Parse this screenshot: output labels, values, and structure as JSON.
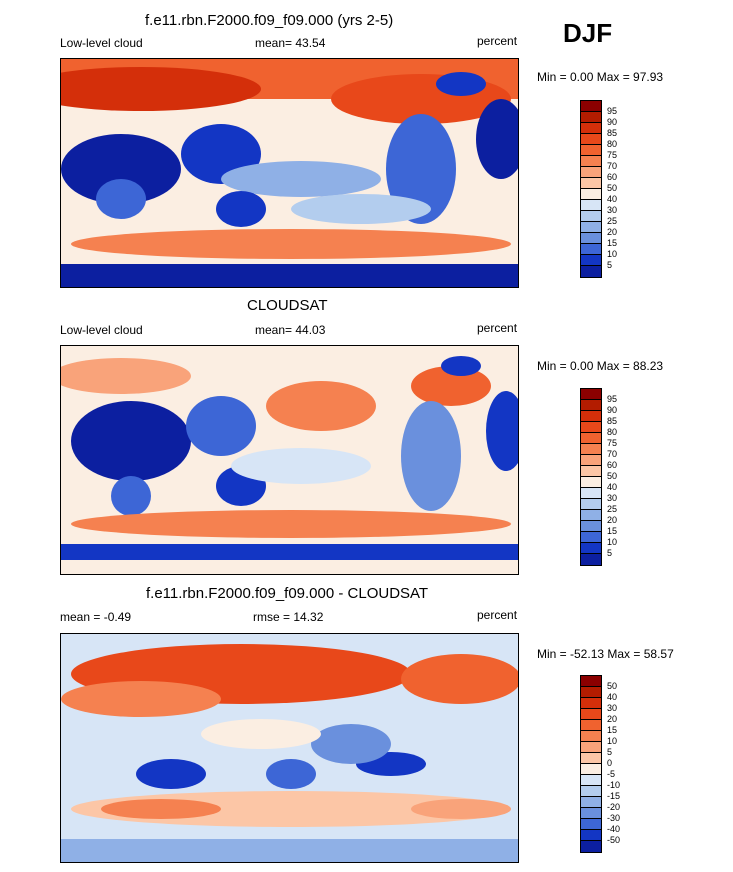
{
  "season": "DJF",
  "panels": [
    {
      "title": "f.e11.rbn.F2000.f09_f09.000 (yrs 2-5)",
      "left_label": "Low-level cloud",
      "center_label": "mean=  43.54",
      "right_label": "percent",
      "minmax": "Min =   0.00 Max =   97.93",
      "colorbar": {
        "labels": [
          "95",
          "90",
          "85",
          "80",
          "75",
          "70",
          "60",
          "50",
          "40",
          "30",
          "25",
          "20",
          "15",
          "10",
          "5"
        ],
        "colors": [
          "#8b0000",
          "#b31c00",
          "#d42f0a",
          "#e8481a",
          "#f0622f",
          "#f58150",
          "#f9a37a",
          "#fcc6a6",
          "#fbeee2",
          "#d7e5f6",
          "#b3cdee",
          "#8fb0e6",
          "#6a90dd",
          "#3d66d6",
          "#1336c4",
          "#0c1fa0"
        ]
      }
    },
    {
      "title": "CLOUDSAT",
      "left_label": "Low-level cloud",
      "center_label": "mean=  44.03",
      "right_label": "percent",
      "minmax": "Min =   0.00 Max =   88.23",
      "colorbar": {
        "labels": [
          "95",
          "90",
          "85",
          "80",
          "75",
          "70",
          "60",
          "50",
          "40",
          "30",
          "25",
          "20",
          "15",
          "10",
          "5"
        ],
        "colors": [
          "#8b0000",
          "#b31c00",
          "#d42f0a",
          "#e8481a",
          "#f0622f",
          "#f58150",
          "#f9a37a",
          "#fcc6a6",
          "#fbeee2",
          "#d7e5f6",
          "#b3cdee",
          "#8fb0e6",
          "#6a90dd",
          "#3d66d6",
          "#1336c4",
          "#0c1fa0"
        ]
      }
    },
    {
      "title": "f.e11.rbn.F2000.f09_f09.000 - CLOUDSAT",
      "left_label": "mean =  -0.49",
      "center_label": "rmse =  14.32",
      "right_label": "percent",
      "minmax": "Min = -52.13 Max =  58.57",
      "colorbar": {
        "labels": [
          "50",
          "40",
          "30",
          "20",
          "15",
          "10",
          "5",
          "0",
          "-5",
          "-10",
          "-15",
          "-20",
          "-30",
          "-40",
          "-50"
        ],
        "colors": [
          "#8b0000",
          "#b31c00",
          "#d42f0a",
          "#e8481a",
          "#f0622f",
          "#f58150",
          "#f9a37a",
          "#fcc6a6",
          "#fbeee2",
          "#d7e5f6",
          "#b3cdee",
          "#8fb0e6",
          "#6a90dd",
          "#3d66d6",
          "#1336c4",
          "#0c1fa0"
        ]
      }
    }
  ],
  "chart_data": [
    {
      "type": "heatmap",
      "title": "f.e11.rbn.F2000.f09_f09.000 (yrs 2-5)",
      "subtitle": "Low-level cloud",
      "units": "percent",
      "mean": 43.54,
      "min": 0.0,
      "max": 97.93,
      "levels": [
        5,
        10,
        15,
        20,
        25,
        30,
        40,
        50,
        60,
        70,
        75,
        80,
        85,
        90,
        95
      ]
    },
    {
      "type": "heatmap",
      "title": "CLOUDSAT",
      "subtitle": "Low-level cloud",
      "units": "percent",
      "mean": 44.03,
      "min": 0.0,
      "max": 88.23,
      "levels": [
        5,
        10,
        15,
        20,
        25,
        30,
        40,
        50,
        60,
        70,
        75,
        80,
        85,
        90,
        95
      ]
    },
    {
      "type": "heatmap",
      "title": "f.e11.rbn.F2000.f09_f09.000 - CLOUDSAT",
      "units": "percent",
      "mean": -0.49,
      "rmse": 14.32,
      "min": -52.13,
      "max": 58.57,
      "levels": [
        -50,
        -40,
        -30,
        -20,
        -15,
        -10,
        -5,
        0,
        5,
        10,
        15,
        20,
        30,
        40,
        50
      ]
    }
  ]
}
